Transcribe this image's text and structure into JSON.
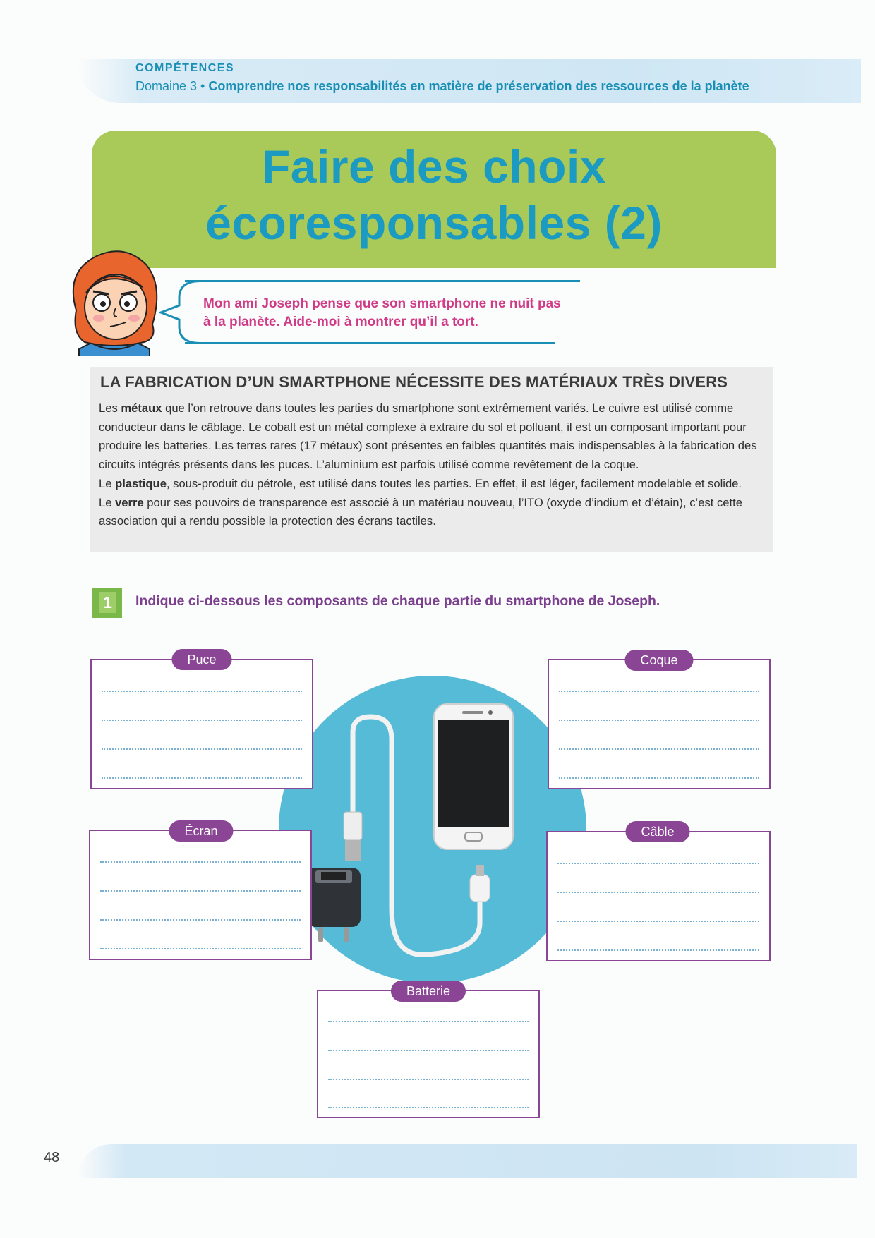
{
  "header": {
    "competences_label": "COMPÉTENCES",
    "domain_prefix": "Domaine 3 •",
    "domain_text": "Comprendre nos responsabilités en matière de préservation des ressources de la planète"
  },
  "title": {
    "line1": "Faire des choix",
    "line2": "écoresponsables (2)"
  },
  "speech": {
    "text": "Mon ami Joseph pense que son smartphone ne nuit pas à la planète. Aide-moi à montrer qu’il a tort."
  },
  "info": {
    "heading": "LA FABRICATION D’UN SMARTPHONE NÉCESSITE DES MATÉRIAUX TRÈS DIVERS",
    "p1_before": "Les ",
    "p1_bold": "métaux",
    "p1_after": " que l’on retrouve dans toutes les parties du smartphone sont extrêmement variés. Le cuivre est utilisé comme conducteur dans le câblage. Le cobalt est un métal complexe à extraire du sol et polluant, il est un composant important pour produire les batteries. Les terres rares (17 métaux) sont présentes en faibles quantités mais indispensables à la fabrication des circuits intégrés présents dans les puces. L’aluminium est parfois utilisé comme revêtement de la coque.",
    "p2_before": "Le ",
    "p2_bold": "plastique",
    "p2_after": ", sous-produit du pétrole, est utilisé dans toutes les parties. En effet, il est léger, facilement modelable et solide.",
    "p3_before": "Le ",
    "p3_bold": "verre",
    "p3_after": " pour ses pouvoirs de transparence est associé à un matériau nouveau, l’ITO (oxyde d’indium et d’étain), c’est cette association qui a rendu possible la protection des écrans tactiles."
  },
  "question": {
    "number": "1",
    "text": "Indique ci-dessous les composants de chaque partie du smartphone de Joseph."
  },
  "boxes": {
    "puce": "Puce",
    "coque": "Coque",
    "ecran": "Écran",
    "cable": "Câble",
    "batterie": "Batterie"
  },
  "footer": {
    "page_number": "48"
  },
  "colors": {
    "title_bg": "#a9c959",
    "title_text": "#1b9ac2",
    "accent_purple": "#8a4594",
    "speech_pink": "#d03a86",
    "circle_blue": "#55bbd7"
  }
}
